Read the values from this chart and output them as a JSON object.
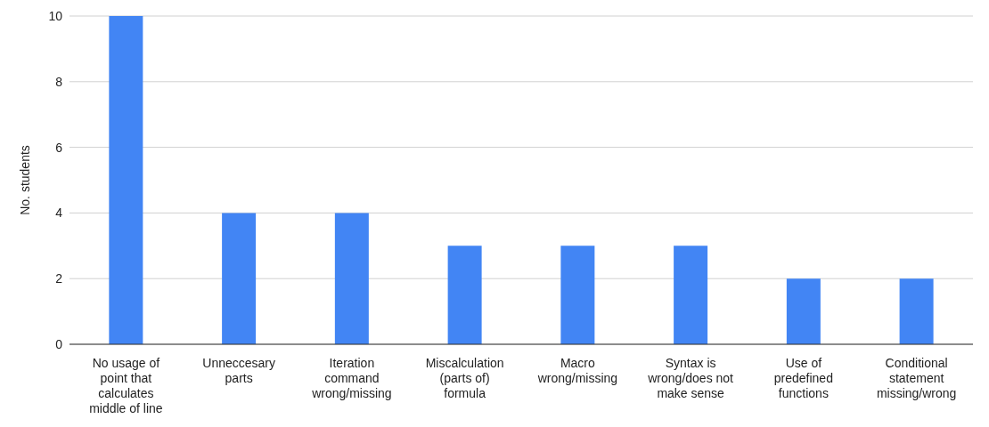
{
  "chart_data": {
    "type": "bar",
    "ylabel": "No. students",
    "categories": [
      "No usage of point that calculates middle of line",
      "Unneccesary parts",
      "Iteration command wrong/missing",
      "Miscalculation (parts of) formula",
      "Macro wrong/missing",
      "Syntax is wrong/does not make sense",
      "Use of predefined functions",
      "Conditional statement missing/wrong"
    ],
    "values": [
      10,
      4,
      4,
      3,
      3,
      3,
      2,
      2
    ],
    "color": "#4285f4",
    "ylim": [
      0,
      10
    ],
    "yticks": [
      0,
      2,
      4,
      6,
      8,
      10
    ],
    "grid": "y",
    "legend": false
  }
}
